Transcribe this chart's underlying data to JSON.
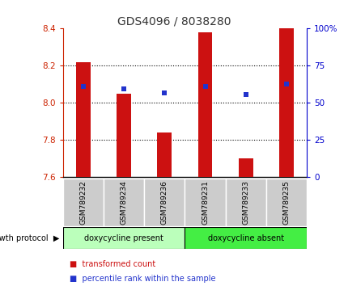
{
  "title": "GDS4096 / 8038280",
  "samples": [
    "GSM789232",
    "GSM789234",
    "GSM789236",
    "GSM789231",
    "GSM789233",
    "GSM789235"
  ],
  "bar_values": [
    8.22,
    8.05,
    7.84,
    8.38,
    7.7,
    8.4
  ],
  "percentile_values": [
    8.09,
    8.075,
    8.055,
    8.09,
    8.045,
    8.1
  ],
  "y_min": 7.6,
  "y_max": 8.4,
  "y_ticks": [
    7.6,
    7.8,
    8.0,
    8.2,
    8.4
  ],
  "right_y_ticks": [
    0,
    25,
    50,
    75,
    100
  ],
  "right_y_tick_positions": [
    7.6,
    7.8,
    8.0,
    8.2,
    8.4
  ],
  "bar_color": "#cc1111",
  "dot_color": "#2233cc",
  "bar_bottom": 7.6,
  "group1_label": "doxycycline present",
  "group2_label": "doxycycline absent",
  "group1_indices": [
    0,
    1,
    2
  ],
  "group2_indices": [
    3,
    4,
    5
  ],
  "group_color1": "#bbffbb",
  "group_color2": "#44ee44",
  "protocol_label": "growth protocol",
  "legend_bar_label": "transformed count",
  "legend_dot_label": "percentile rank within the sample",
  "title_color": "#333333",
  "left_axis_color": "#cc2200",
  "right_axis_color": "#0000cc",
  "tick_label_bg": "#cccccc",
  "bar_width": 0.35
}
